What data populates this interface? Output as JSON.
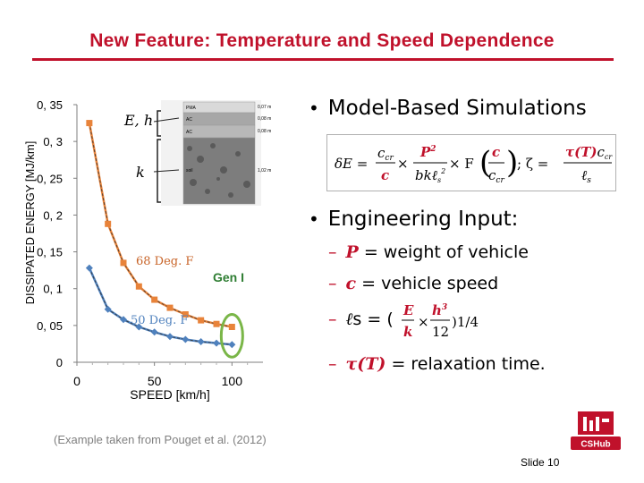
{
  "slide": {
    "title": "New Feature: Temperature and Speed Dependence",
    "citation": "(Example taken from Pouget et al. (2012)",
    "slide_number": "Slide 10"
  },
  "colors": {
    "accent_red": "#c0112b",
    "series_68": "#e8833a",
    "series_50": "#4f81bd",
    "highlight": "#7ab648"
  },
  "chart_data": {
    "type": "scatter",
    "title": "",
    "xlabel": "SPEED [km/h]",
    "ylabel": "DISSIPATED ENERGY [MJ/km]",
    "xlim": [
      0,
      120
    ],
    "ylim": [
      0,
      0.35
    ],
    "x_ticks": [
      "0",
      "50",
      "100"
    ],
    "y_ticks": [
      "0",
      "0, 05",
      "0, 1",
      "0, 15",
      "0, 2",
      "0, 25",
      "0, 3",
      "0, 35"
    ],
    "y_tick_values": [
      0,
      0.05,
      0.1,
      0.15,
      0.2,
      0.25,
      0.3,
      0.35
    ],
    "x_tick_values": [
      0,
      50,
      100
    ],
    "grid": false,
    "series": [
      {
        "name": "68 Deg. F",
        "points": [
          [
            8,
            0.325
          ],
          [
            20,
            0.188
          ],
          [
            30,
            0.135
          ],
          [
            40,
            0.103
          ],
          [
            50,
            0.085
          ],
          [
            60,
            0.074
          ],
          [
            70,
            0.065
          ],
          [
            80,
            0.057
          ],
          [
            90,
            0.052
          ],
          [
            100,
            0.048
          ]
        ]
      },
      {
        "name": "50 Deg. F",
        "points": [
          [
            8,
            0.128
          ],
          [
            20,
            0.072
          ],
          [
            30,
            0.058
          ],
          [
            40,
            0.048
          ],
          [
            50,
            0.041
          ],
          [
            60,
            0.035
          ],
          [
            70,
            0.031
          ],
          [
            80,
            0.028
          ],
          [
            90,
            0.026
          ],
          [
            100,
            0.024
          ]
        ]
      }
    ],
    "annotations": [
      {
        "text": "68 Deg. F"
      },
      {
        "text": "50 Deg. F"
      },
      {
        "text": "Gen I"
      }
    ],
    "inset": {
      "labels": [
        "E, h",
        "k"
      ],
      "layers": [
        "PMA",
        "AC",
        "AC",
        "soil"
      ],
      "thickness": [
        "0,07 m",
        "0,08 m",
        "0,08 m",
        "1,02 m"
      ]
    }
  },
  "bullets": {
    "model_based": "Model-Based Simulations",
    "engineering_input": "Engineering Input:",
    "items": [
      {
        "symbol": "P",
        "text": " = weight of vehicle"
      },
      {
        "symbol": "c",
        "text": " = vehicle speed"
      },
      {
        "symbol": "ℓ",
        "text": "s = ("
      },
      {
        "symbol": "τ(T)",
        "text": " = relaxation time."
      }
    ]
  },
  "formula": {
    "lhs": "δE = ",
    "ccr": "c",
    "ccr_sub": "cr",
    "c": "c",
    "times": " × ",
    "P2": "P",
    "P2_sup": "2",
    "bk": "bkℓ",
    "bk_sub": "s",
    "bk_sup": "2",
    "times_F": " × F",
    "semicolon": " ; ζ = ",
    "tau": "τ(T)",
    "tau_tail": "c",
    "tau_tail_sub": "cr",
    "ls": "ℓ",
    "ls_sub": "s",
    "frac_E": "E",
    "frac_k": "k",
    "frac_h3": "h",
    "frac_h3_sup": "3",
    "frac_12": "12",
    "pow": ")1/4"
  }
}
